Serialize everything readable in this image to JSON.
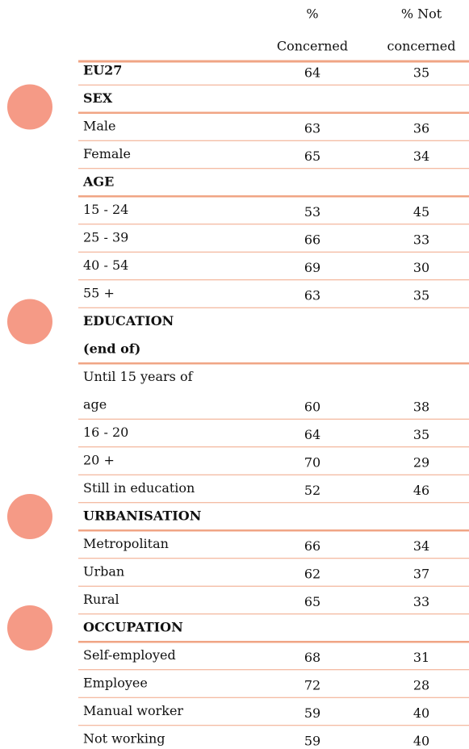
{
  "table": {
    "header": {
      "concerned": [
        "%",
        "Concerned"
      ],
      "not_concerned": [
        "% Not",
        "concerned"
      ]
    },
    "total": {
      "label": [
        "EU27"
      ],
      "concerned": 64,
      "not_concerned": 35
    },
    "sections": [
      {
        "title": [
          "SEX"
        ],
        "rows": [
          {
            "label": [
              "Male"
            ],
            "concerned": 63,
            "not_concerned": 36
          },
          {
            "label": [
              "Female"
            ],
            "concerned": 65,
            "not_concerned": 34
          }
        ]
      },
      {
        "title": [
          "AGE"
        ],
        "rows": [
          {
            "label": [
              "15 - 24"
            ],
            "concerned": 53,
            "not_concerned": 45
          },
          {
            "label": [
              "25 - 39"
            ],
            "concerned": 66,
            "not_concerned": 33
          },
          {
            "label": [
              "40 - 54"
            ],
            "concerned": 69,
            "not_concerned": 30
          },
          {
            "label": [
              "55 +"
            ],
            "concerned": 63,
            "not_concerned": 35
          }
        ]
      },
      {
        "title": [
          "EDUCATION",
          "(end of)"
        ],
        "rows": [
          {
            "label": [
              "Until 15 years of",
              "age"
            ],
            "concerned": 60,
            "not_concerned": 38
          },
          {
            "label": [
              "16 - 20"
            ],
            "concerned": 64,
            "not_concerned": 35
          },
          {
            "label": [
              "20 +"
            ],
            "concerned": 70,
            "not_concerned": 29
          },
          {
            "label": [
              "Still in education"
            ],
            "concerned": 52,
            "not_concerned": 46
          }
        ]
      },
      {
        "title": [
          "URBANISATION"
        ],
        "rows": [
          {
            "label": [
              "Metropolitan"
            ],
            "concerned": 66,
            "not_concerned": 34
          },
          {
            "label": [
              "Urban"
            ],
            "concerned": 62,
            "not_concerned": 37
          },
          {
            "label": [
              "Rural"
            ],
            "concerned": 65,
            "not_concerned": 33
          }
        ]
      },
      {
        "title": [
          "OCCUPATION"
        ],
        "rows": [
          {
            "label": [
              "Self-employed"
            ],
            "concerned": 68,
            "not_concerned": 31
          },
          {
            "label": [
              "Employee"
            ],
            "concerned": 72,
            "not_concerned": 28
          },
          {
            "label": [
              "Manual worker"
            ],
            "concerned": 59,
            "not_concerned": 40
          },
          {
            "label": [
              "Not working"
            ],
            "concerned": 59,
            "not_concerned": 40
          }
        ]
      }
    ]
  }
}
